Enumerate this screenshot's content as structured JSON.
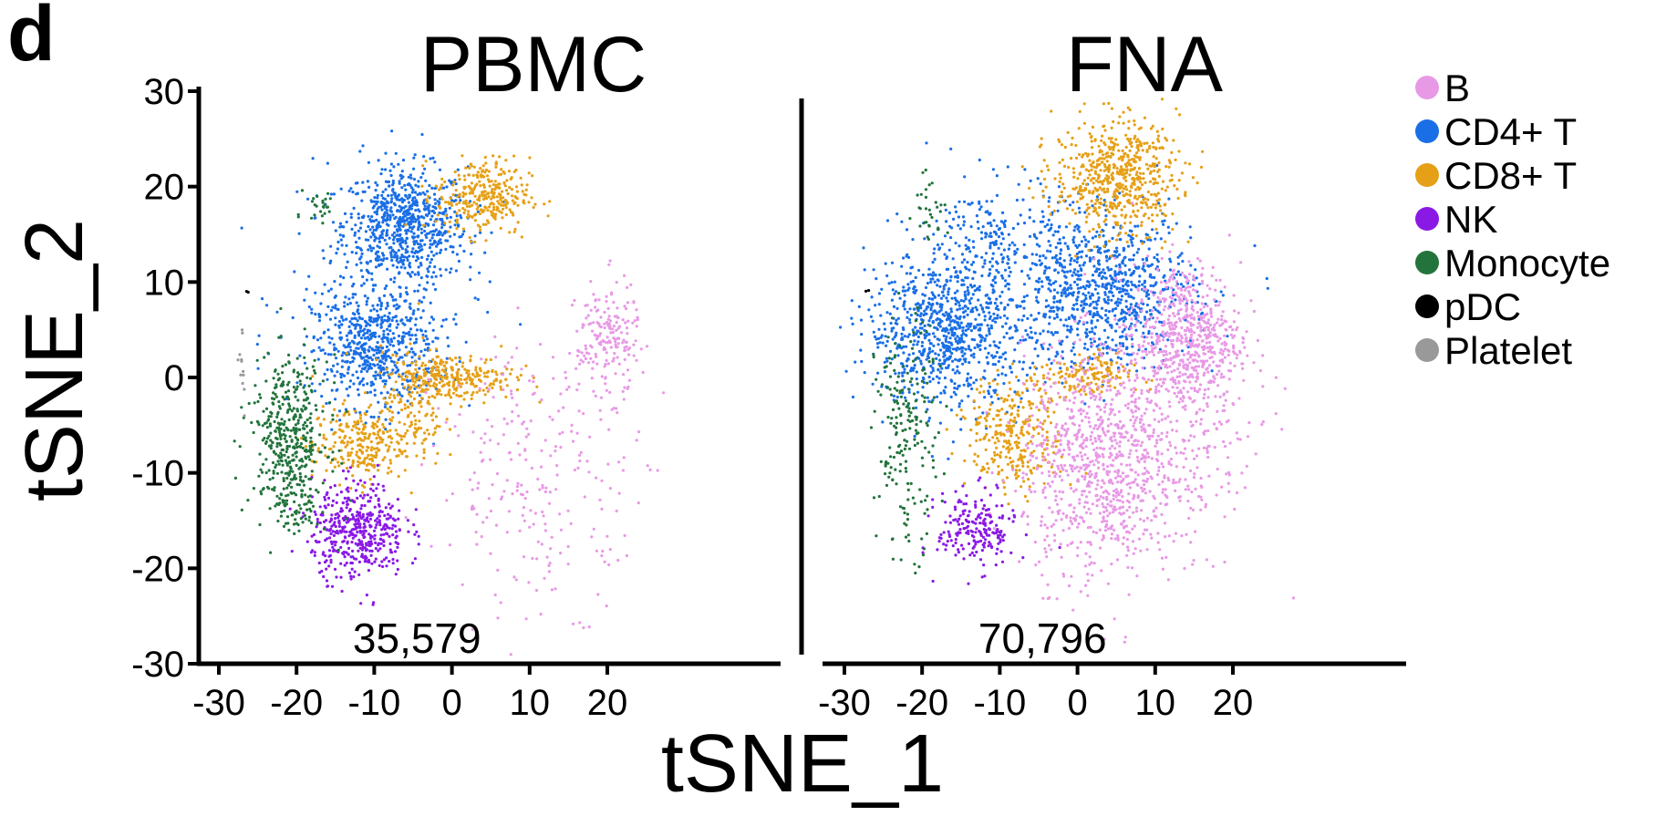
{
  "panel_label": "d",
  "chart_data": {
    "type": "scatter",
    "xlabel": "tSNE_1",
    "ylabel": "tSNE_2",
    "xlim": [
      -31,
      28
    ],
    "ylim": [
      -30,
      30
    ],
    "xticks": [
      -30,
      -20,
      -10,
      0,
      10,
      20
    ],
    "yticks": [
      -30,
      -20,
      -10,
      0,
      10,
      20,
      30
    ],
    "legend": {
      "position": "right",
      "items": [
        {
          "name": "B",
          "color": "#e899e6"
        },
        {
          "name": "CD4+ T",
          "color": "#1a6fe6"
        },
        {
          "name": "CD8+ T",
          "color": "#e6a017"
        },
        {
          "name": "NK",
          "color": "#8a19e6"
        },
        {
          "name": "Monocyte",
          "color": "#22743c"
        },
        {
          "name": "pDC",
          "color": "#000000"
        },
        {
          "name": "Platelet",
          "color": "#999999"
        }
      ]
    },
    "facets": [
      {
        "title": "PBMC",
        "count": "35,579",
        "clusters": [
          {
            "type": "CD4+ T",
            "cx": -6,
            "cy": 16,
            "sx": 4,
            "sy": 3,
            "n": 700
          },
          {
            "type": "CD4+ T",
            "cx": -10,
            "cy": 3,
            "sx": 4,
            "sy": 3,
            "n": 550
          },
          {
            "type": "CD4+ T",
            "cx": -9,
            "cy": 8,
            "sx": 6,
            "sy": 6,
            "n": 200
          },
          {
            "type": "CD8+ T",
            "cx": 4,
            "cy": 19,
            "sx": 3,
            "sy": 2,
            "n": 300
          },
          {
            "type": "CD8+ T",
            "cx": 0,
            "cy": 0,
            "sx": 4,
            "sy": 1.2,
            "n": 280
          },
          {
            "type": "CD8+ T",
            "cx": -12,
            "cy": -7,
            "sx": 3,
            "sy": 2,
            "n": 250
          },
          {
            "type": "CD8+ T",
            "cx": -5,
            "cy": -3,
            "sx": 2,
            "sy": 3,
            "n": 120
          },
          {
            "type": "NK",
            "cx": -12,
            "cy": -16,
            "sx": 3,
            "sy": 2.5,
            "n": 450
          },
          {
            "type": "Monocyte",
            "cx": -21,
            "cy": -6,
            "sx": 2.5,
            "sy": 4,
            "n": 400
          },
          {
            "type": "Monocyte",
            "cx": -20,
            "cy": -13,
            "sx": 1.5,
            "sy": 2,
            "n": 80
          },
          {
            "type": "Monocyte",
            "cx": -17,
            "cy": 18,
            "sx": 1,
            "sy": 1,
            "n": 25
          },
          {
            "type": "B",
            "cx": 20,
            "cy": 4,
            "sx": 2,
            "sy": 3,
            "n": 180
          },
          {
            "type": "B",
            "cx": 12,
            "cy": -10,
            "sx": 7,
            "sy": 7,
            "n": 260
          },
          {
            "type": "Platelet",
            "cx": -27,
            "cy": 1,
            "sx": 0.4,
            "sy": 2,
            "n": 12
          },
          {
            "type": "pDC",
            "cx": -26,
            "cy": 9,
            "sx": 0.2,
            "sy": 0.2,
            "n": 2
          }
        ]
      },
      {
        "title": "FNA",
        "count": "70,796",
        "clusters": [
          {
            "type": "CD4+ T",
            "cx": -17,
            "cy": 5,
            "sx": 5,
            "sy": 4,
            "n": 850
          },
          {
            "type": "CD4+ T",
            "cx": 3,
            "cy": 9,
            "sx": 6,
            "sy": 4,
            "n": 900
          },
          {
            "type": "CD4+ T",
            "cx": -10,
            "cy": 15,
            "sx": 4,
            "sy": 3,
            "n": 180
          },
          {
            "type": "CD8+ T",
            "cx": 5,
            "cy": 21,
            "sx": 4,
            "sy": 3,
            "n": 600
          },
          {
            "type": "CD8+ T",
            "cx": -8,
            "cy": -6,
            "sx": 3,
            "sy": 3,
            "n": 300
          },
          {
            "type": "CD8+ T",
            "cx": 1,
            "cy": 0,
            "sx": 3,
            "sy": 1.2,
            "n": 150
          },
          {
            "type": "B",
            "cx": 14,
            "cy": 4,
            "sx": 3.5,
            "sy": 4,
            "n": 650
          },
          {
            "type": "B",
            "cx": 3,
            "cy": -9,
            "sx": 5,
            "sy": 6,
            "n": 900
          },
          {
            "type": "B",
            "cx": 15,
            "cy": -8,
            "sx": 5,
            "sy": 5,
            "n": 150
          },
          {
            "type": "NK",
            "cx": -13,
            "cy": -16,
            "sx": 2.5,
            "sy": 2,
            "n": 200
          },
          {
            "type": "Monocyte",
            "cx": -22,
            "cy": -6,
            "sx": 2,
            "sy": 6,
            "n": 200
          },
          {
            "type": "Monocyte",
            "cx": -19,
            "cy": 18,
            "sx": 1,
            "sy": 2,
            "n": 30
          },
          {
            "type": "pDC",
            "cx": -27,
            "cy": 9,
            "sx": 0.2,
            "sy": 0.2,
            "n": 2
          }
        ]
      }
    ]
  }
}
